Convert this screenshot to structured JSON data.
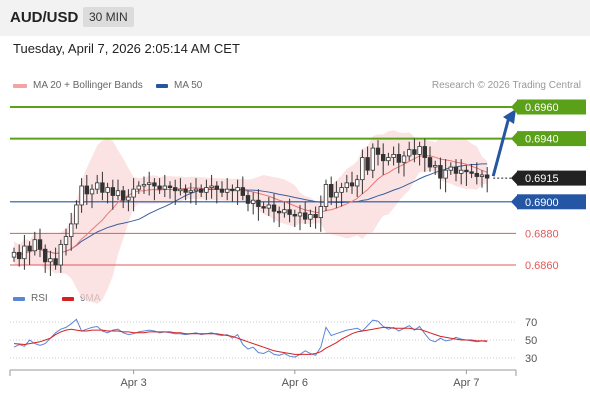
{
  "header": {
    "pair": "AUD/USD",
    "timeframe": "30 MIN"
  },
  "timestamp": "Tuesday, April 7, 2026 2:05:14 AM CET",
  "legend": {
    "bb_label": "MA 20 + Bollinger Bands",
    "ma50_label": "MA 50",
    "rsi_label": "RSI",
    "rsi_ma_label": "9MA"
  },
  "credit": "Research © 2026 Trading Central",
  "colors": {
    "green": "#5aa119",
    "blue": "#2556a3",
    "red": "#e05a5a",
    "bb_fill": "#fbd9d9",
    "ma20": "#e87878",
    "ma50": "#3a5e9e",
    "rsi": "#5b86d6",
    "rsi_ma": "#d62020"
  },
  "chart_data": {
    "type": "candlestick",
    "levels": [
      {
        "value": 0.696,
        "label": "0.6960",
        "kind": "resistance"
      },
      {
        "value": 0.694,
        "label": "0.6940",
        "kind": "resistance"
      },
      {
        "value": 0.6915,
        "label": "0.6915",
        "kind": "last"
      },
      {
        "value": 0.69,
        "label": "0.6900",
        "kind": "pivot"
      },
      {
        "value": 0.688,
        "label": "0.6880",
        "kind": "support"
      },
      {
        "value": 0.686,
        "label": "0.6860",
        "kind": "support"
      }
    ],
    "x_ticks": [
      "Apr 3",
      "Apr 6",
      "Apr 7"
    ],
    "rsi_ticks": [
      70,
      50,
      30
    ],
    "closes": [
      0.6868,
      0.6864,
      0.6872,
      0.6869,
      0.6876,
      0.687,
      0.6862,
      0.6864,
      0.686,
      0.6873,
      0.6878,
      0.6886,
      0.6898,
      0.691,
      0.6905,
      0.6908,
      0.6912,
      0.6906,
      0.6909,
      0.6904,
      0.6907,
      0.6901,
      0.6903,
      0.6908,
      0.691,
      0.6911,
      0.6912,
      0.691,
      0.6908,
      0.691,
      0.6909,
      0.6907,
      0.6908,
      0.6906,
      0.6907,
      0.6908,
      0.6906,
      0.6909,
      0.691,
      0.6908,
      0.6906,
      0.6908,
      0.6907,
      0.6909,
      0.6904,
      0.6899,
      0.6901,
      0.6897,
      0.6896,
      0.6898,
      0.6894,
      0.6893,
      0.6895,
      0.6892,
      0.6891,
      0.6893,
      0.6889,
      0.6892,
      0.689,
      0.6897,
      0.6911,
      0.6903,
      0.6906,
      0.6909,
      0.6912,
      0.691,
      0.6914,
      0.6928,
      0.692,
      0.6934,
      0.693,
      0.6926,
      0.6928,
      0.693,
      0.6925,
      0.6929,
      0.6933,
      0.693,
      0.6935,
      0.6928,
      0.6922,
      0.6923,
      0.6915,
      0.692,
      0.6922,
      0.6918,
      0.692,
      0.6919,
      0.6918,
      0.6916,
      0.6917,
      0.6915
    ],
    "rsi": [
      42,
      45,
      43,
      50,
      46,
      44,
      46,
      52,
      58,
      62,
      64,
      68,
      73,
      60,
      62,
      64,
      65,
      60,
      58,
      61,
      62,
      58,
      56,
      57,
      59,
      60,
      61,
      60,
      58,
      59,
      58,
      57,
      57,
      56,
      57,
      58,
      56,
      57,
      58,
      56,
      55,
      56,
      52,
      56,
      45,
      40,
      42,
      36,
      35,
      38,
      34,
      33,
      35,
      32,
      31,
      34,
      38,
      35,
      33,
      42,
      64,
      55,
      57,
      59,
      61,
      62,
      63,
      60,
      66,
      72,
      71,
      65,
      62,
      64,
      60,
      63,
      66,
      61,
      65,
      57,
      50,
      48,
      52,
      49,
      50,
      53,
      51,
      50,
      49,
      48,
      49,
      48
    ],
    "rsi_ma": [
      46,
      45.5,
      45,
      46,
      47,
      48,
      50,
      52,
      56,
      59,
      61,
      62,
      61,
      60,
      60,
      61,
      61,
      61,
      60,
      60,
      60,
      59,
      59,
      58,
      58,
      58,
      59,
      59,
      59,
      59,
      59,
      58,
      58,
      57,
      57,
      57,
      57,
      57,
      57,
      57,
      56,
      55,
      54,
      52,
      50,
      48,
      46,
      44,
      42,
      40,
      38,
      37,
      36,
      35,
      34,
      34,
      34,
      34,
      35,
      37,
      41,
      44,
      47,
      51,
      54,
      57,
      59,
      60,
      61,
      62,
      63,
      64,
      64,
      63,
      63,
      63,
      63,
      62,
      62,
      60,
      58,
      56,
      54,
      53,
      52,
      51,
      50,
      50,
      50,
      49,
      49,
      49
    ]
  }
}
